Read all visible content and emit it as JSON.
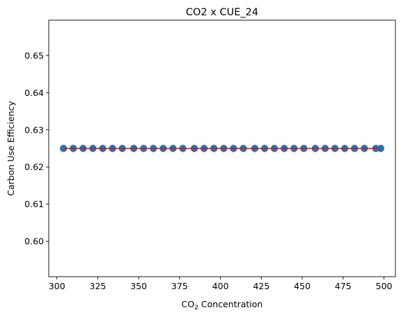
{
  "chart_data": {
    "type": "scatter",
    "title": "CO2 x CUE_24",
    "xlabel_main": "CO",
    "xlabel_sub": "2",
    "xlabel_rest": " Concentration",
    "ylabel": "Carbon Use Efficiency",
    "xlim": [
      295,
      507
    ],
    "ylim": [
      0.5905,
      0.6595
    ],
    "xticks": [
      300,
      325,
      350,
      375,
      400,
      425,
      450,
      475,
      500
    ],
    "yticks": [
      0.6,
      0.61,
      0.62,
      0.63,
      0.64,
      0.65
    ],
    "grid": false,
    "series": [
      {
        "kind": "points",
        "x": [
          304,
          310,
          316,
          322,
          328,
          334,
          340,
          347,
          353,
          359,
          365,
          371,
          377,
          384,
          390,
          396,
          402,
          408,
          414,
          421,
          427,
          433,
          439,
          445,
          451,
          458,
          464,
          470,
          476,
          482,
          488,
          495,
          498
        ],
        "y": [
          0.625,
          0.625,
          0.625,
          0.625,
          0.625,
          0.625,
          0.625,
          0.625,
          0.625,
          0.625,
          0.625,
          0.625,
          0.625,
          0.625,
          0.625,
          0.625,
          0.625,
          0.625,
          0.625,
          0.625,
          0.625,
          0.625,
          0.625,
          0.625,
          0.625,
          0.625,
          0.625,
          0.625,
          0.625,
          0.625,
          0.625,
          0.625,
          0.625
        ],
        "color": "#1f77b4"
      },
      {
        "kind": "fit-line",
        "x": [
          304,
          498
        ],
        "y": [
          0.625,
          0.625
        ],
        "color": "#ff0000"
      }
    ]
  }
}
